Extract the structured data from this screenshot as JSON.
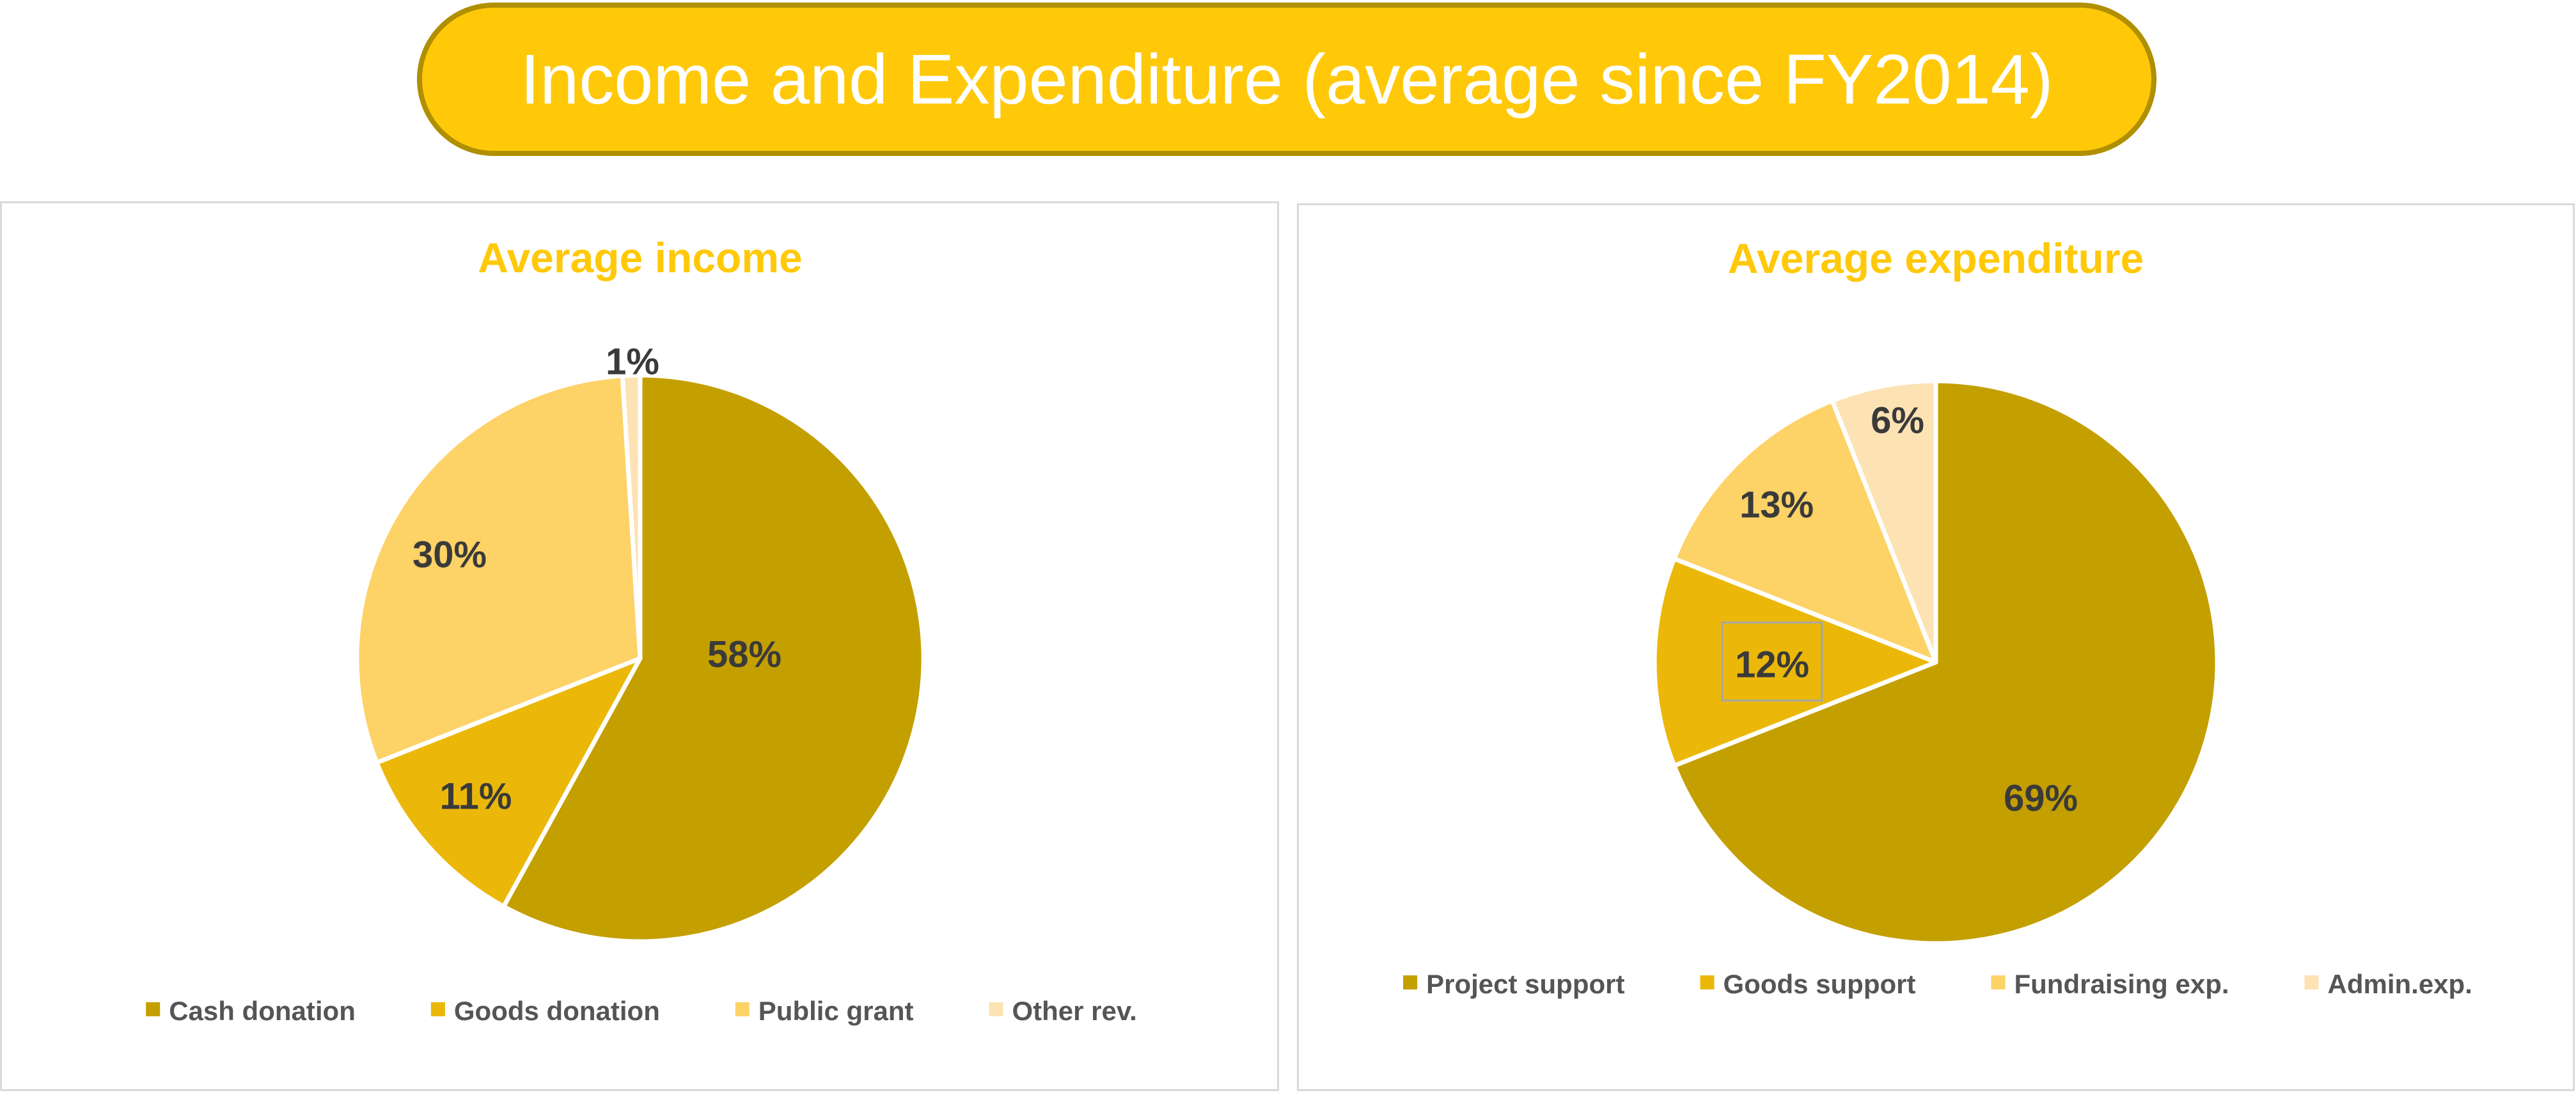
{
  "banner": {
    "title": "Income and Expenditure (average since FY2014)"
  },
  "colors": {
    "banner_fill": "#ffc90a",
    "banner_border": "#b08f00",
    "title_text": "#ffc90a",
    "slice_dark": "#c49f00",
    "slice_mid": "#ebb80a",
    "slice_light": "#fdd266",
    "slice_pale": "#fde3b4"
  },
  "chart_data": [
    {
      "type": "pie",
      "title": "Average income",
      "categories": [
        "Cash donation",
        "Goods donation",
        "Public grant",
        "Other rev."
      ],
      "values": [
        58,
        11,
        30,
        1
      ],
      "labels": [
        "58%",
        "11%",
        "30%",
        "1%"
      ],
      "colors": [
        "#c49f00",
        "#ebb80a",
        "#fdd266",
        "#fde3b4"
      ],
      "legend_position": "bottom"
    },
    {
      "type": "pie",
      "title": "Average expenditure",
      "categories": [
        "Project support",
        "Goods support",
        "Fundraising exp.",
        "Admin.exp."
      ],
      "values": [
        69,
        12,
        13,
        6
      ],
      "labels": [
        "69%",
        "12%",
        "13%",
        "6%"
      ],
      "colors": [
        "#c49f00",
        "#ebb80a",
        "#fdd266",
        "#fde3b4"
      ],
      "legend_position": "bottom"
    }
  ]
}
